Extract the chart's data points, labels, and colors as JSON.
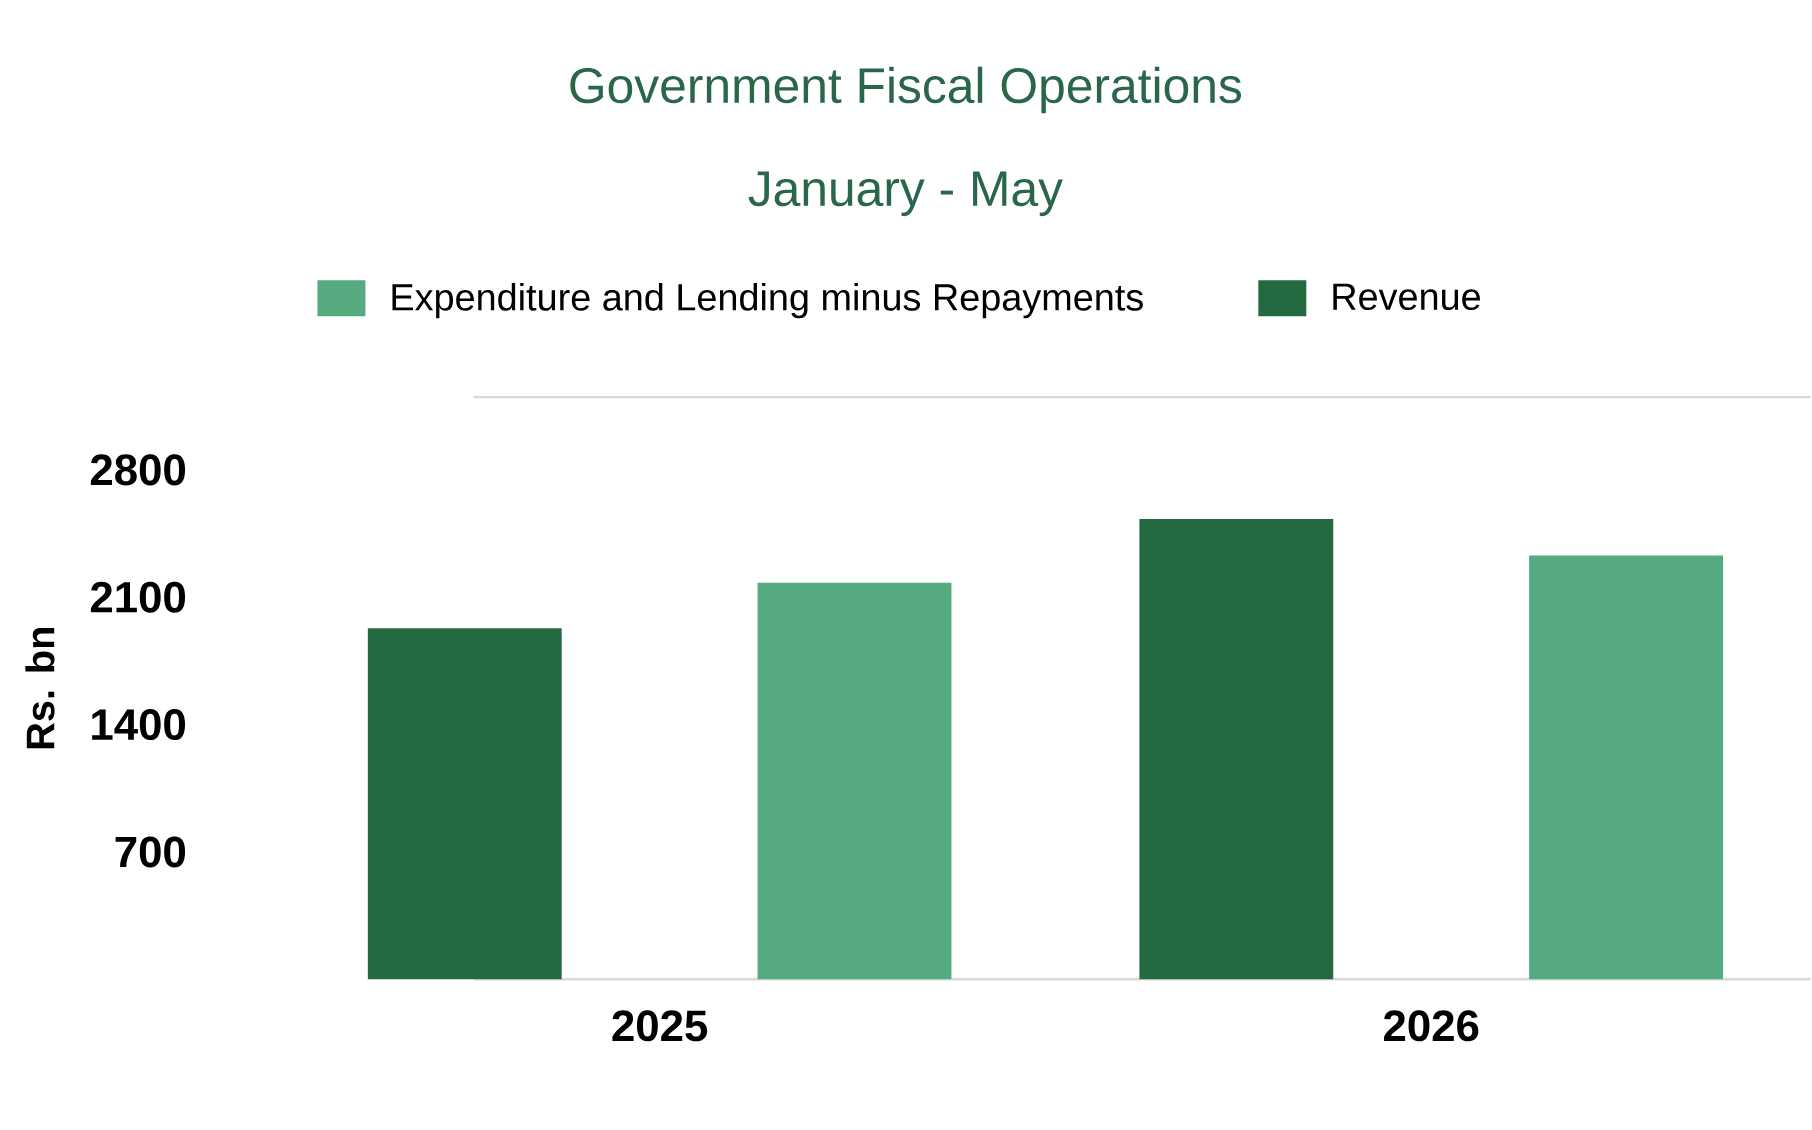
{
  "chart_data": {
    "type": "bar",
    "title": "Government Fiscal Operations",
    "subtitle": "January - May",
    "ylabel": "Rs. bn",
    "categories": [
      "2025",
      "2026"
    ],
    "series": [
      {
        "name": "Revenue",
        "color": "#246a40",
        "values": [
          1930,
          2530
        ]
      },
      {
        "name": "Expenditure and Lending minus Repayments",
        "color": "#55aa80",
        "values": [
          2180,
          2330
        ]
      }
    ],
    "ylim": [
      0,
      3200
    ],
    "yticks": [
      700,
      1400,
      2100,
      2800
    ],
    "legend": "top"
  }
}
